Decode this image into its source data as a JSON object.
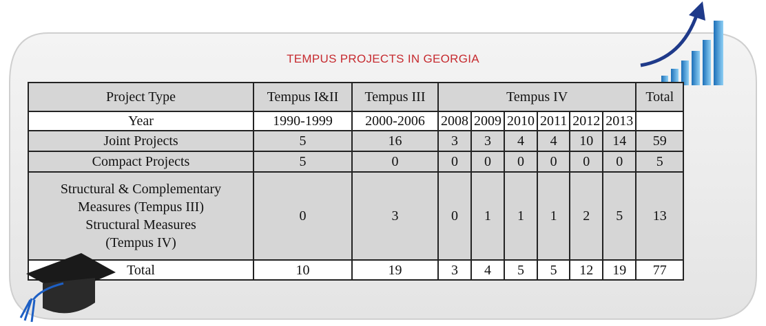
{
  "title": "TEMPUS PROJECTS IN GEORGIA",
  "table": {
    "header": [
      "Project Type",
      "Tempus I&II",
      "Tempus III",
      "Tempus IV",
      "Total"
    ],
    "rows": [
      [
        "Year",
        "1990-1999",
        "2000-2006",
        "2008",
        "2009",
        "2010",
        "2011",
        "2012",
        "2013"
      ],
      [
        "Joint Projects",
        5,
        16,
        3,
        3,
        4,
        4,
        10,
        14,
        59
      ],
      [
        "Compact Projects",
        5,
        0,
        0,
        0,
        0,
        0,
        0,
        0,
        5
      ],
      [
        [
          "Structural & Complementary",
          "Measures (Tempus III)",
          "Structural Measures",
          "(Tempus IV)"
        ],
        0,
        3,
        0,
        1,
        1,
        1,
        2,
        5,
        13
      ],
      [
        "Total",
        10,
        19,
        3,
        4,
        5,
        5,
        12,
        19,
        77
      ]
    ]
  }
}
